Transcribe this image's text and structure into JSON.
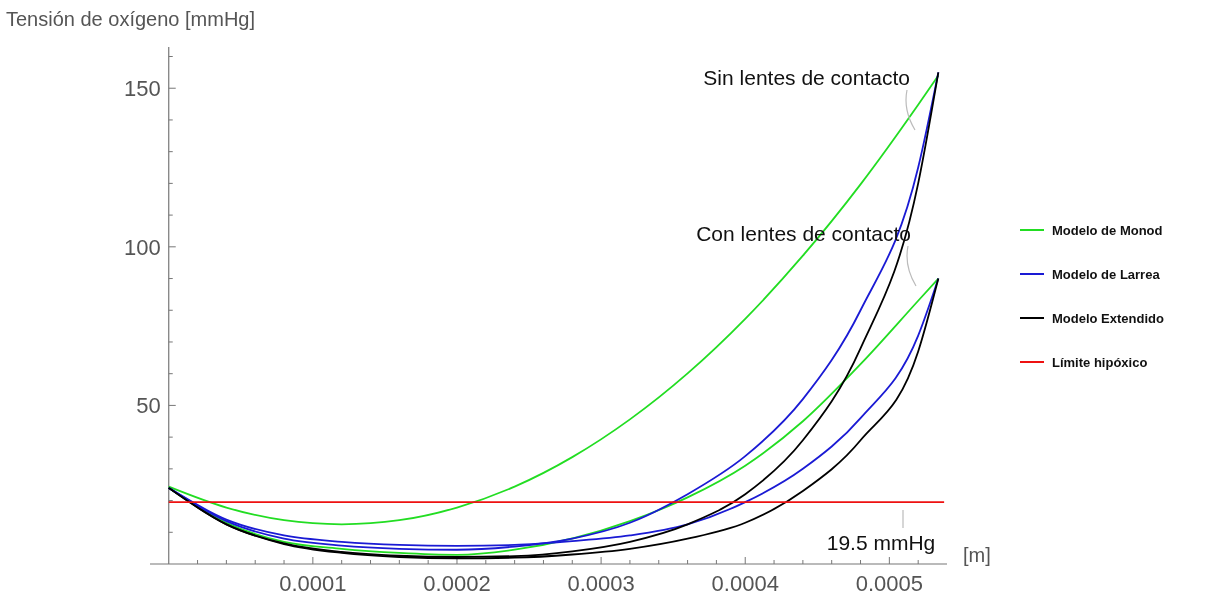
{
  "chart_data": {
    "type": "line",
    "xlabel": "[m]",
    "ylabel": "Tensión de oxígeno [mmHg]",
    "x": [
      0,
      4e-05,
      8e-05,
      0.00012,
      0.00016,
      0.0002,
      0.00024,
      0.00028,
      0.00032,
      0.00036,
      0.0004,
      0.00044,
      0.00048,
      0.00052,
      0.000534
    ],
    "series": [
      {
        "name": "Modelo de Monod",
        "color": "#22dd22",
        "values": [
          24.4,
          17.8,
          13.8,
          12.5,
          13.8,
          17.8,
          24.4,
          33.7,
          45.6,
          60.1,
          77.3,
          97.2,
          119.7,
          144.8,
          154
        ]
      },
      {
        "color": "#22dd22",
        "values": [
          24,
          13,
          7,
          4.8,
          3.5,
          2.9,
          4.5,
          null,
          13.5,
          21,
          31,
          45,
          63,
          83,
          90
        ]
      },
      {
        "name": "Modelo de Larrea",
        "color": "#1a1ad4",
        "values": [
          24,
          13.5,
          8,
          5.8,
          4.8,
          4.5,
          5.5,
          8,
          13,
          22,
          34,
          52,
          80,
          125,
          155
        ]
      },
      {
        "color": "#1a1ad4",
        "values": [
          24,
          14,
          9,
          7,
          6,
          5.7,
          6,
          7.2,
          9,
          12.5,
          19.5,
          30,
          46,
          72,
          90
        ]
      },
      {
        "name": "Modelo Extendido",
        "color": "#000000",
        "values": [
          24,
          12.5,
          6.5,
          3.8,
          2.6,
          2.2,
          2.5,
          4,
          7,
          12.5,
          22,
          39,
          68,
          120,
          155
        ]
      },
      {
        "color": "#000000",
        "values": [
          24,
          12.5,
          6.3,
          3.5,
          2.2,
          1.8,
          2,
          3,
          4.8,
          8,
          13,
          23,
          39,
          67,
          90
        ]
      },
      {
        "name": "Límite hipóxico",
        "color": "#ee1111",
        "x": [
          0,
          0.000538
        ],
        "values": [
          19.5,
          19.5
        ]
      }
    ],
    "annotations": [
      "Sin lentes de contacto",
      "Con lentes de contacto",
      "19.5 mmHg"
    ],
    "xlim": [
      -1.3e-05,
      0.00054
    ],
    "ylim": [
      0,
      163
    ],
    "xticks": [
      {
        "value": 2e-05,
        "label": null
      },
      {
        "value": 4e-05,
        "label": null
      },
      {
        "value": 6e-05,
        "label": null
      },
      {
        "value": 8e-05,
        "label": null
      },
      0.0001,
      {
        "value": 0.00012,
        "label": null
      },
      {
        "value": 0.00014,
        "label": null
      },
      {
        "value": 0.00016,
        "label": null
      },
      {
        "value": 0.00018,
        "label": null
      },
      0.0002,
      {
        "value": 0.00022,
        "label": null
      },
      {
        "value": 0.00024,
        "label": null
      },
      {
        "value": 0.00026,
        "label": null
      },
      {
        "value": 0.00028,
        "label": null
      },
      0.0003,
      {
        "value": 0.00032,
        "label": null
      },
      {
        "value": 0.00034,
        "label": null
      },
      {
        "value": 0.00036,
        "label": null
      },
      {
        "value": 0.00038,
        "label": null
      },
      0.0004,
      {
        "value": 0.00042,
        "label": null
      },
      {
        "value": 0.00044,
        "label": null
      },
      {
        "value": 0.00046,
        "label": null
      },
      {
        "value": 0.00048,
        "label": null
      },
      0.0005,
      {
        "value": 0.00052,
        "label": null
      }
    ],
    "yticks": [
      {
        "value": 10,
        "label": null
      },
      {
        "value": 20,
        "label": null
      },
      {
        "value": 30,
        "label": null
      },
      {
        "value": 40,
        "label": null
      },
      50,
      {
        "value": 60,
        "label": null
      },
      {
        "value": 70,
        "label": null
      },
      {
        "value": 80,
        "label": null
      },
      {
        "value": 90,
        "label": null
      },
      100,
      {
        "value": 110,
        "label": null
      },
      {
        "value": 120,
        "label": null
      },
      {
        "value": 130,
        "label": null
      },
      {
        "value": 140,
        "label": null
      },
      150,
      {
        "value": 160,
        "label": null
      }
    ],
    "grid": false,
    "legend": "right",
    "marker": "none",
    "line_style": "solid"
  }
}
